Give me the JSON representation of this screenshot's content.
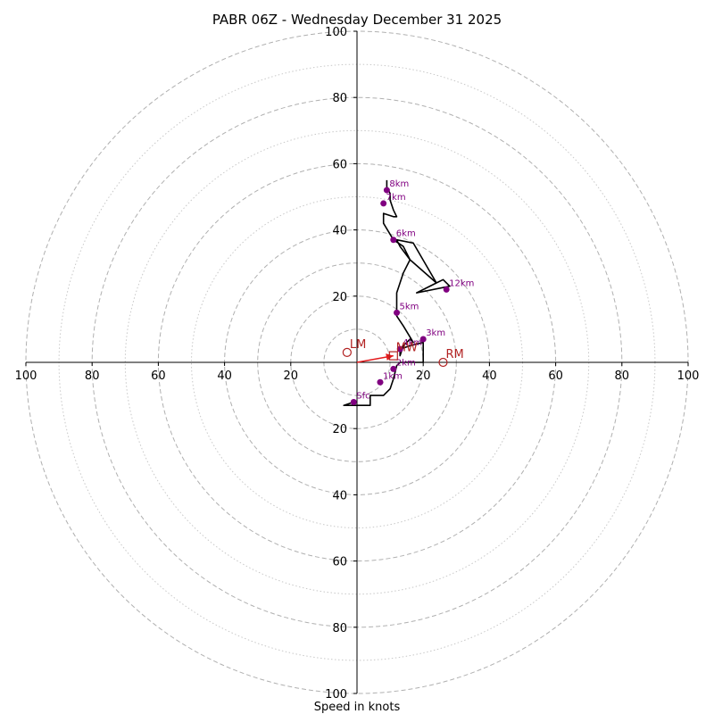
{
  "chart_data": {
    "type": "hodograph",
    "title": "PABR 06Z - Wednesday December 31 2025",
    "xlabel": "Speed in knots",
    "ylabel": "",
    "max_speed": 100,
    "ring_labels": [
      "20",
      "40",
      "60",
      "80",
      "100"
    ],
    "ring_values": [
      20,
      40,
      60,
      80,
      100
    ],
    "dashed_rings": [
      10,
      20,
      30,
      40,
      60,
      80,
      100
    ],
    "dotted_rings": [
      50,
      70,
      90
    ],
    "hodograph_trace": [
      [
        -1,
        -12
      ],
      [
        -4,
        -13
      ],
      [
        4,
        -13
      ],
      [
        4,
        -10
      ],
      [
        8,
        -10
      ],
      [
        10,
        -8
      ],
      [
        11,
        -5
      ],
      [
        12,
        -1
      ],
      [
        13,
        0
      ],
      [
        20,
        0
      ],
      [
        20,
        6
      ],
      [
        16,
        5
      ],
      [
        13,
        4
      ],
      [
        13,
        2
      ],
      [
        14,
        5
      ],
      [
        16,
        7
      ],
      [
        17,
        6
      ],
      [
        14,
        11
      ],
      [
        12,
        14
      ],
      [
        12,
        20
      ],
      [
        12,
        21
      ],
      [
        14,
        27
      ],
      [
        16,
        31
      ],
      [
        13,
        35
      ],
      [
        12,
        37
      ],
      [
        17,
        36
      ],
      [
        24,
        24
      ],
      [
        18,
        21
      ],
      [
        28,
        23
      ],
      [
        26,
        25
      ],
      [
        24,
        24
      ],
      [
        16,
        31
      ],
      [
        14,
        35
      ],
      [
        11,
        37
      ],
      [
        8,
        42
      ],
      [
        8,
        45
      ],
      [
        11,
        44
      ],
      [
        12,
        44
      ],
      [
        11,
        46
      ],
      [
        10,
        49
      ],
      [
        10,
        51
      ],
      [
        9,
        53
      ],
      [
        9,
        55
      ]
    ],
    "height_markers": [
      {
        "label": "Sfc",
        "u": -1,
        "v": -12
      },
      {
        "label": "1km",
        "u": 7,
        "v": -6
      },
      {
        "label": "2km",
        "u": 11,
        "v": -2
      },
      {
        "label": "3km",
        "u": 20,
        "v": 7
      },
      {
        "label": "4km",
        "u": 13,
        "v": 4
      },
      {
        "label": "5km",
        "u": 12,
        "v": 15
      },
      {
        "label": "6km",
        "u": 11,
        "v": 37
      },
      {
        "label": "7km",
        "u": 8,
        "v": 48
      },
      {
        "label": "8km",
        "u": 9,
        "v": 52
      },
      {
        "label": "12km",
        "u": 27,
        "v": 22
      }
    ],
    "storm_motions": [
      {
        "label": "LM",
        "u": -3,
        "v": 3
      },
      {
        "label": "RM",
        "u": 26,
        "v": 0
      },
      {
        "label": "MW",
        "u": 11,
        "v": 2
      }
    ],
    "motion_arrow": {
      "from_u": 0,
      "from_v": 0,
      "to_u": 11,
      "to_v": 2
    },
    "colors": {
      "trace": "#000000",
      "markers": "#800080",
      "storm_motion": "#b22222",
      "arrow": "#e41a1c",
      "dashed_ring": "#b0b0b0",
      "dotted_ring": "#c8c8c8",
      "axis": "#000000"
    },
    "grid": true,
    "legend": "none"
  }
}
